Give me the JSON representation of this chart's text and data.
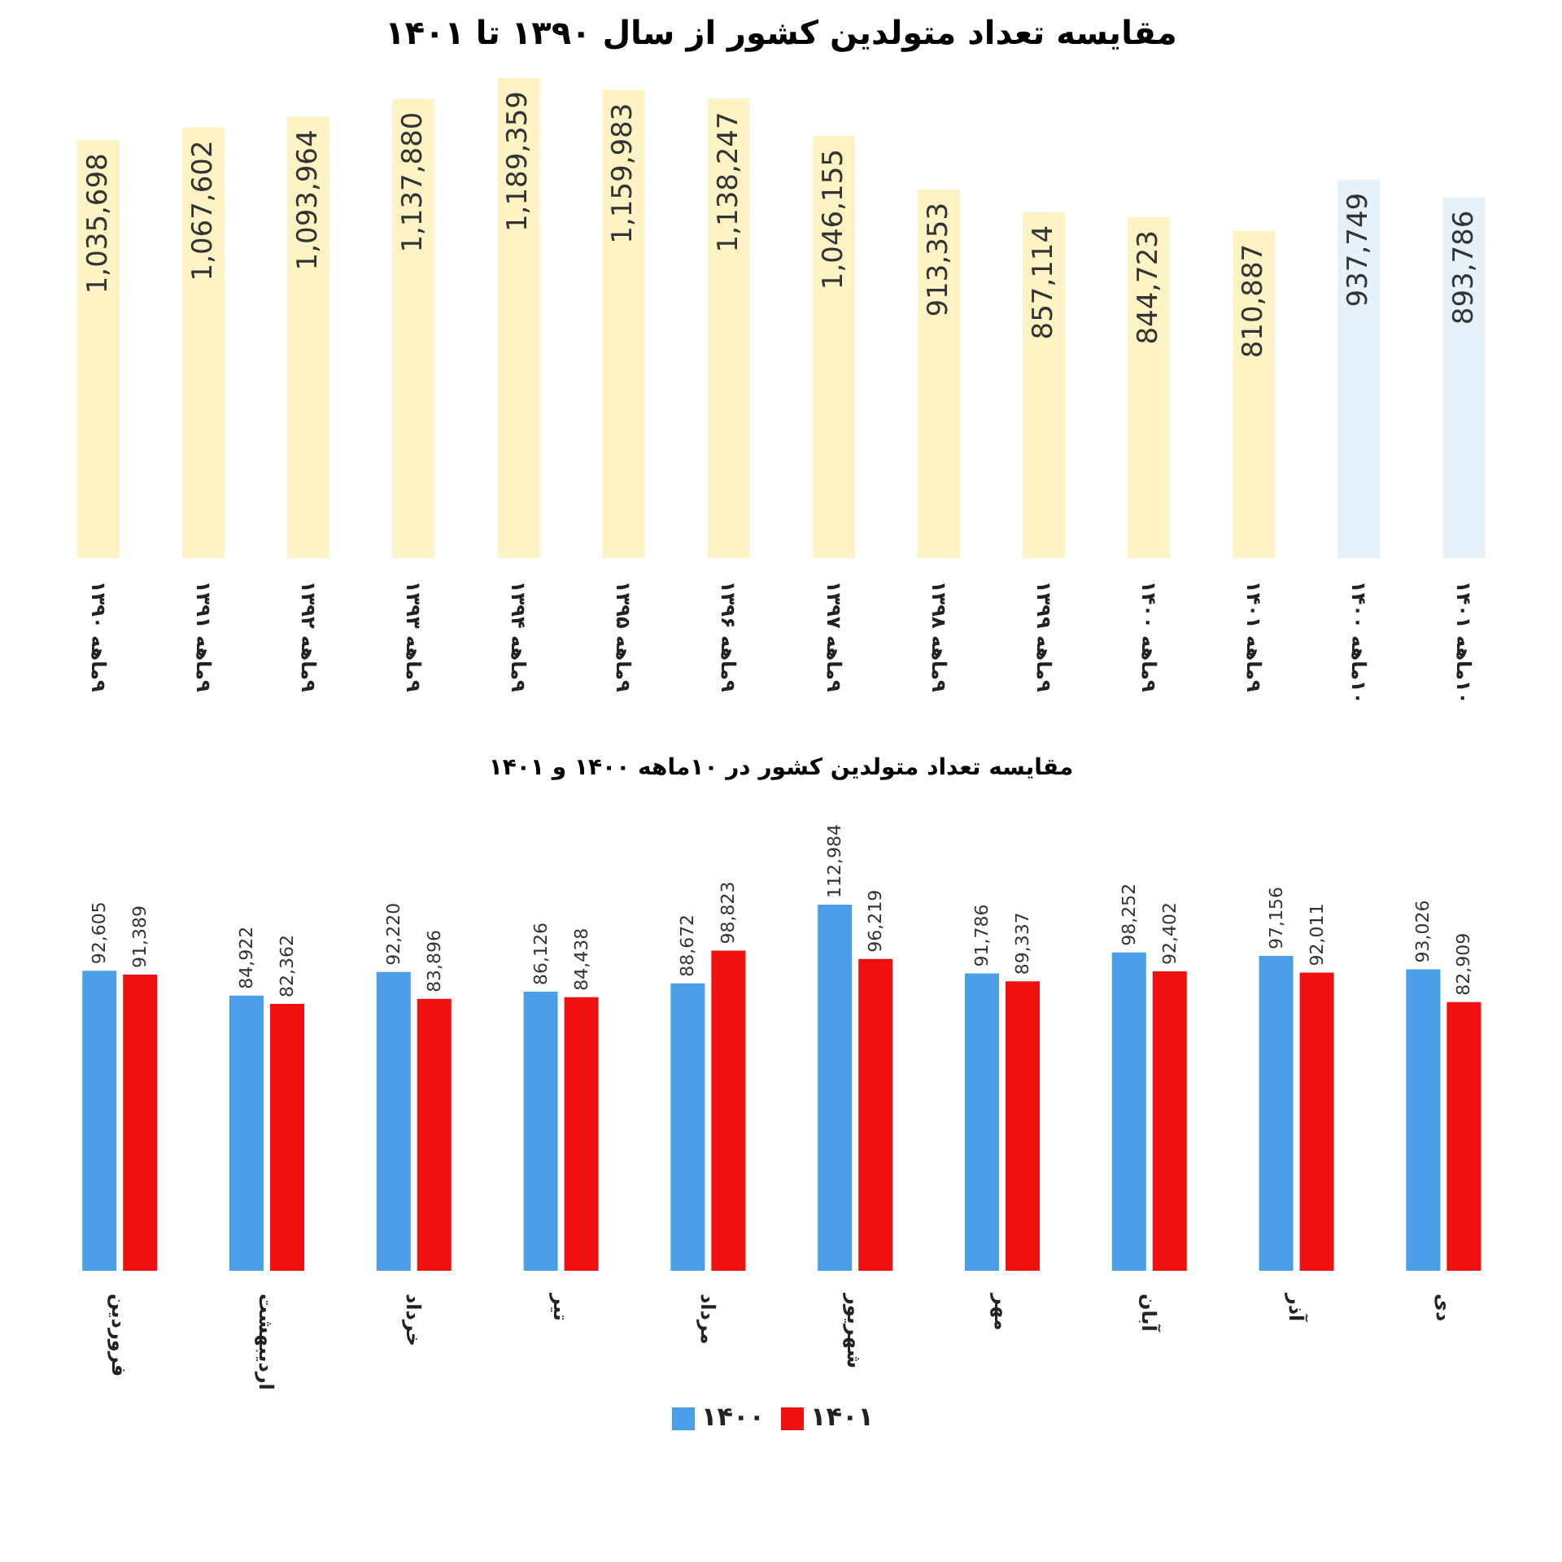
{
  "chart_data": [
    {
      "type": "bar",
      "title": "مقایسه تعداد متولدین کشور از سال ۱۳۹۰ تا ۱۴۰۱",
      "categories": [
        "۹ماهه ۱۳۹۰",
        "۹ماهه ۱۳۹۱",
        "۹ماهه ۱۳۹۲",
        "۹ماهه ۱۳۹۳",
        "۹ماهه ۱۳۹۴",
        "۹ماهه ۱۳۹۵",
        "۹ماهه ۱۳۹۶",
        "۹ماهه ۱۳۹۷",
        "۹ماهه ۱۳۹۸",
        "۹ماهه ۱۳۹۹",
        "۹ماهه ۱۴۰۰",
        "۹ماهه ۱۴۰۱",
        "۱۰ماهه ۱۴۰۰",
        "۱۰ماهه ۱۴۰۱"
      ],
      "values": [
        1035698,
        1067602,
        1093964,
        1137880,
        1189359,
        1159983,
        1138247,
        1046155,
        913353,
        857114,
        844723,
        810887,
        937749,
        893786
      ],
      "value_labels": [
        "1,035,698",
        "1,067,602",
        "1,093,964",
        "1,137,880",
        "1,189,359",
        "1,159,983",
        "1,138,247",
        "1,046,155",
        "913,353",
        "857,114",
        "844,723",
        "810,887",
        "937,749",
        "893,786"
      ],
      "colors": [
        "#fdf3c4",
        "#fdf3c4",
        "#fdf3c4",
        "#fdf3c4",
        "#fdf3c4",
        "#fdf3c4",
        "#fdf3c4",
        "#fdf3c4",
        "#fdf3c4",
        "#fdf3c4",
        "#fdf3c4",
        "#fdf3c4",
        "#e6f1fa",
        "#e6f1fa"
      ],
      "grid": false,
      "legend": false
    },
    {
      "type": "bar",
      "title": "مقایسه تعداد متولدین کشور در ۱۰ماهه ۱۴۰۰ و ۱۴۰۱",
      "categories": [
        "فروردین",
        "اردیبهشت",
        "خرداد",
        "تیر",
        "مرداد",
        "شهریور",
        "مهر",
        "آبان",
        "آذر",
        "دی"
      ],
      "series": [
        {
          "name": "۱۴۰۰",
          "color": "#4a9fe8",
          "values": [
            92605,
            84922,
            92220,
            86126,
            88672,
            112984,
            91786,
            98252,
            97156,
            93026
          ],
          "value_labels": [
            "92,605",
            "84,922",
            "92,220",
            "86,126",
            "88,672",
            "112,984",
            "91,786",
            "98,252",
            "97,156",
            "93,026"
          ]
        },
        {
          "name": "۱۴۰۱",
          "color": "#f01010",
          "values": [
            91389,
            82362,
            83896,
            84438,
            98823,
            96219,
            89337,
            92402,
            92011,
            82909
          ],
          "value_labels": [
            "91,389",
            "82,362",
            "83,896",
            "84,438",
            "98,823",
            "96,219",
            "89,337",
            "92,402",
            "92,011",
            "82,909"
          ]
        }
      ],
      "grid": false,
      "legend": "bottom"
    }
  ]
}
